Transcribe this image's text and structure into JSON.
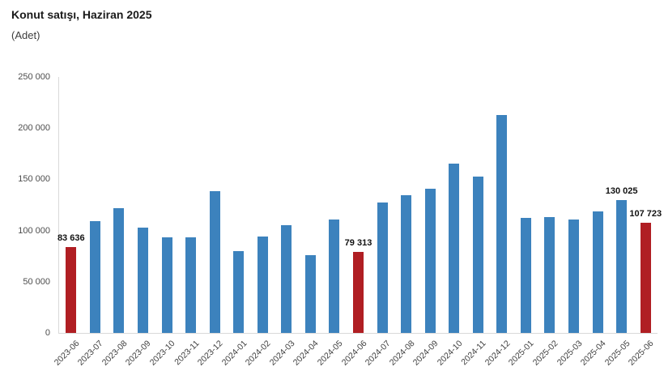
{
  "header": {
    "title": "Konut satışı, Haziran 2025",
    "subtitle": "(Adet)"
  },
  "colors": {
    "bar_default": "#3c82bd",
    "bar_highlight": "#b01e23",
    "axis_line": "#d9d9d9",
    "tick_text": "#4d4d4d",
    "x_label_text": "#404040",
    "data_label_text": "#111111"
  },
  "chart_data": {
    "type": "bar",
    "title": "Konut satışı, Haziran 2025",
    "unit_label": "(Adet)",
    "categories": [
      "2023-06",
      "2023-07",
      "2023-08",
      "2023-09",
      "2023-10",
      "2023-11",
      "2023-12",
      "2024-01",
      "2024-02",
      "2024-03",
      "2024-04",
      "2024-05",
      "2024-06",
      "2024-07",
      "2024-08",
      "2024-09",
      "2024-10",
      "2024-11",
      "2024-12",
      "2025-01",
      "2025-02",
      "2025-03",
      "2025-04",
      "2025-05",
      "2025-06"
    ],
    "values": [
      83636,
      109548,
      122091,
      102656,
      93761,
      93514,
      138577,
      80308,
      93902,
      105476,
      75569,
      110588,
      79313,
      127088,
      134155,
      140919,
      165138,
      153014,
      212637,
      112173,
      112818,
      110795,
      118359,
      130025,
      107723
    ],
    "highlighted_categories": [
      "2023-06",
      "2024-06",
      "2025-06"
    ],
    "data_labels": {
      "2023-06": "83 636",
      "2024-06": "79 313",
      "2025-05": "130 025",
      "2025-06": "107 723"
    },
    "ylim": [
      0,
      250000
    ],
    "yticks": [
      {
        "value": 0,
        "label": "0"
      },
      {
        "value": 50000,
        "label": "50 000"
      },
      {
        "value": 100000,
        "label": "100 000"
      },
      {
        "value": 150000,
        "label": "150 000"
      },
      {
        "value": 200000,
        "label": "200 000"
      },
      {
        "value": 250000,
        "label": "250 000"
      }
    ],
    "grid": false,
    "legend": false,
    "xlabel": "",
    "ylabel": ""
  }
}
